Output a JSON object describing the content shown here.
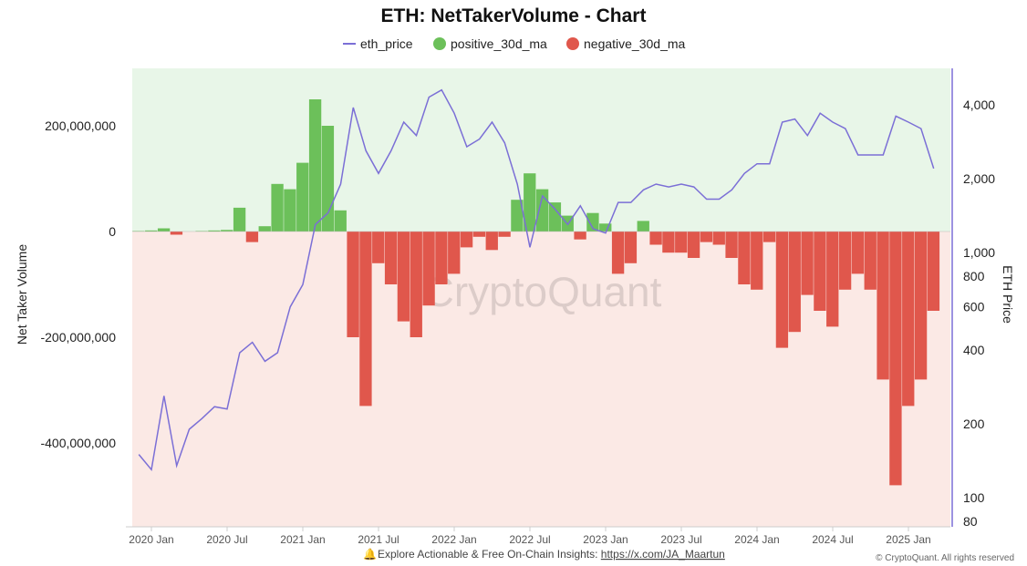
{
  "chart_data": {
    "type": "bar",
    "title": "ETH: NetTakerVolume - Chart",
    "ylabel_left": "Net Taker Volume",
    "ylabel_right": "ETH Price",
    "right_axis_scale": "log",
    "ylim_left": [
      -550000000,
      300000000
    ],
    "ylim_right": [
      80,
      5000
    ],
    "left_ticks": [
      {
        "v": 200000000,
        "label": "200,000,000"
      },
      {
        "v": 0,
        "label": "0"
      },
      {
        "v": -200000000,
        "label": "-200,000,000"
      },
      {
        "v": -400000000,
        "label": "-400,000,000"
      }
    ],
    "right_ticks": [
      {
        "v": 4000,
        "label": "4,000"
      },
      {
        "v": 2000,
        "label": "2,000"
      },
      {
        "v": 1000,
        "label": "1,000"
      },
      {
        "v": 800,
        "label": "800"
      },
      {
        "v": 600,
        "label": "600"
      },
      {
        "v": 400,
        "label": "400"
      },
      {
        "v": 200,
        "label": "200"
      },
      {
        "v": 100,
        "label": "100"
      },
      {
        "v": 80,
        "label": "80"
      }
    ],
    "x_ticks": [
      {
        "d": "2020-01",
        "label": "2020 Jan"
      },
      {
        "d": "2020-07",
        "label": "2020 Jul"
      },
      {
        "d": "2021-01",
        "label": "2021 Jan"
      },
      {
        "d": "2021-07",
        "label": "2021 Jul"
      },
      {
        "d": "2022-01",
        "label": "2022 Jan"
      },
      {
        "d": "2022-07",
        "label": "2022 Jul"
      },
      {
        "d": "2023-01",
        "label": "2023 Jan"
      },
      {
        "d": "2023-07",
        "label": "2023 Jul"
      },
      {
        "d": "2024-01",
        "label": "2024 Jan"
      },
      {
        "d": "2024-07",
        "label": "2024 Jul"
      },
      {
        "d": "2025-01",
        "label": "2025 Jan"
      }
    ],
    "legend_position": "top",
    "grid": true,
    "legend": [
      {
        "name": "eth_price",
        "color": "#7b6fd6",
        "shape": "line"
      },
      {
        "name": "positive_30d_ma",
        "color": "#6cc05a",
        "shape": "circle"
      },
      {
        "name": "negative_30d_ma",
        "color": "#e0574c",
        "shape": "circle"
      }
    ],
    "dates": [
      "2019-12",
      "2020-01",
      "2020-02",
      "2020-03",
      "2020-04",
      "2020-05",
      "2020-06",
      "2020-07",
      "2020-08",
      "2020-09",
      "2020-10",
      "2020-11",
      "2020-12",
      "2021-01",
      "2021-02",
      "2021-03",
      "2021-04",
      "2021-05",
      "2021-06",
      "2021-07",
      "2021-08",
      "2021-09",
      "2021-10",
      "2021-11",
      "2021-12",
      "2022-01",
      "2022-02",
      "2022-03",
      "2022-04",
      "2022-05",
      "2022-06",
      "2022-07",
      "2022-08",
      "2022-09",
      "2022-10",
      "2022-11",
      "2022-12",
      "2023-01",
      "2023-02",
      "2023-03",
      "2023-04",
      "2023-05",
      "2023-06",
      "2023-07",
      "2023-08",
      "2023-09",
      "2023-10",
      "2023-11",
      "2023-12",
      "2024-01",
      "2024-02",
      "2024-03",
      "2024-04",
      "2024-05",
      "2024-06",
      "2024-07",
      "2024-08",
      "2024-09",
      "2024-10",
      "2024-11",
      "2024-12",
      "2025-01",
      "2025-02",
      "2025-03"
    ],
    "net_taker_volume_millions": [
      1,
      2,
      6,
      -6,
      0,
      1,
      2,
      3,
      45,
      -20,
      10,
      90,
      80,
      130,
      250,
      200,
      40,
      -200,
      -330,
      -60,
      -100,
      -170,
      -200,
      -140,
      -100,
      -80,
      -30,
      -10,
      -35,
      -10,
      60,
      110,
      80,
      55,
      30,
      -15,
      35,
      15,
      -80,
      -60,
      20,
      -25,
      -40,
      -40,
      -50,
      -20,
      -25,
      -50,
      -100,
      -110,
      -20,
      -220,
      -190,
      -120,
      -150,
      -180,
      -110,
      -80,
      -110,
      -280,
      -480,
      -330,
      -280,
      -150
    ],
    "eth_price": [
      150,
      130,
      260,
      135,
      190,
      210,
      235,
      230,
      390,
      430,
      360,
      390,
      600,
      740,
      1300,
      1450,
      1900,
      3900,
      2600,
      2100,
      2600,
      3400,
      3000,
      4300,
      4600,
      3700,
      2700,
      2900,
      3400,
      2800,
      1900,
      1050,
      1700,
      1500,
      1300,
      1550,
      1250,
      1200,
      1600,
      1600,
      1800,
      1900,
      1850,
      1900,
      1850,
      1650,
      1650,
      1800,
      2100,
      2300,
      2300,
      3400,
      3500,
      3000,
      3700,
      3400,
      3200,
      2500,
      2500,
      2500,
      3600,
      3400,
      3200,
      2200
    ]
  },
  "colors": {
    "positive_bg": "#e8f6e8",
    "negative_bg": "#fbe9e5",
    "axis": "#7b6fd6"
  },
  "watermark": "CryptoQuant",
  "footer": {
    "text": "Explore Actionable & Free On-Chain Insights: ",
    "link": "https://x.com/JA_Maartun",
    "copyright": "© CryptoQuant. All rights reserved",
    "icon": "bell-icon"
  }
}
